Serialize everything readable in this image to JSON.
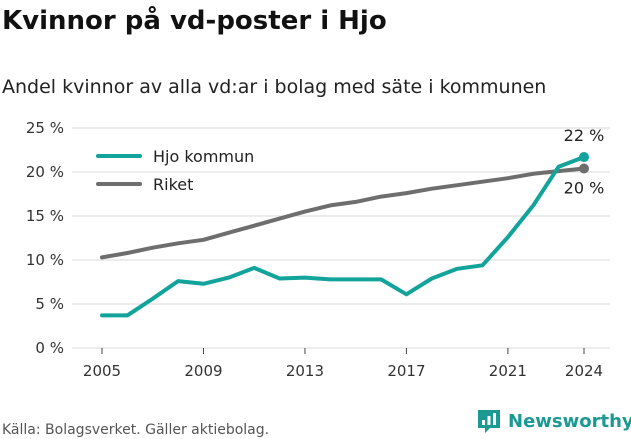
{
  "header": {
    "title": "Kvinnor på vd-poster i Hjo",
    "subtitle": "Andel kvinnor av alla vd:ar i bolag med säte i kommunen"
  },
  "footer": {
    "source": "Källa: Bolagsverket. Gäller aktiebolag.",
    "brand": "Newsworthy"
  },
  "colors": {
    "hjo": "#12a39b",
    "riket": "#6e6e6e",
    "grid": "#d9d9d9",
    "brand": "#1a9a93"
  },
  "chart_data": {
    "type": "line",
    "title": "Andel kvinnor av alla vd:ar i bolag med säte i kommunen",
    "x": [
      2005,
      2006,
      2007,
      2008,
      2009,
      2010,
      2011,
      2012,
      2013,
      2014,
      2015,
      2016,
      2017,
      2018,
      2019,
      2020,
      2021,
      2022,
      2023,
      2024
    ],
    "x_ticks": [
      2005,
      2009,
      2013,
      2017,
      2021,
      2024
    ],
    "y_ticks": [
      0,
      5,
      10,
      15,
      20,
      25
    ],
    "y_tick_labels": [
      "0 %",
      "5 %",
      "10 %",
      "15 %",
      "20 %",
      "25 %"
    ],
    "xlim": [
      2005,
      2024
    ],
    "ylim": [
      0,
      25
    ],
    "grid": true,
    "legend_position": "top-left",
    "series": [
      {
        "name": "Hjo kommun",
        "color": "#12a39b",
        "values": [
          3.7,
          3.7,
          5.6,
          7.6,
          7.3,
          8.0,
          9.1,
          7.9,
          8.0,
          7.8,
          7.8,
          7.8,
          6.1,
          7.9,
          9.0,
          9.4,
          12.6,
          16.2,
          20.6,
          21.7
        ],
        "end_label": "22 %"
      },
      {
        "name": "Riket",
        "color": "#6e6e6e",
        "values": [
          10.3,
          10.8,
          11.4,
          11.9,
          12.3,
          13.1,
          13.9,
          14.7,
          15.5,
          16.2,
          16.6,
          17.2,
          17.6,
          18.1,
          18.5,
          18.9,
          19.3,
          19.8,
          20.1,
          20.4
        ],
        "end_label": "20 %"
      }
    ]
  }
}
